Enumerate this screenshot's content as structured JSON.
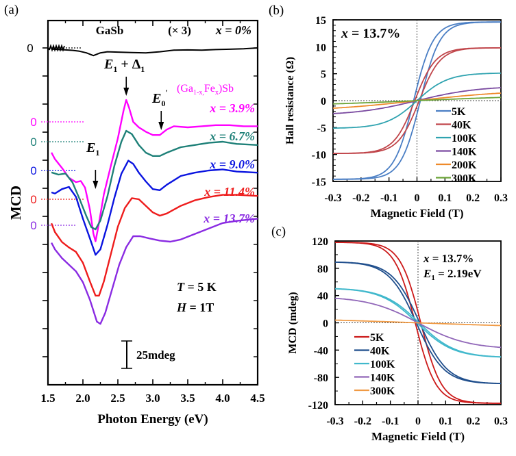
{
  "chart_data": [
    {
      "panel": "(a)",
      "type": "line",
      "xlabel": "Photon Energy (eV)",
      "ylabel": "MCD",
      "xlim": [
        1.5,
        4.5
      ],
      "xticks": [
        "1.5",
        "2.0",
        "2.5",
        "3.0",
        "3.5",
        "4.0",
        "4.5"
      ],
      "scale_bar_label": "25mdeg",
      "scale_bar_mdeg": 25,
      "conditions": [
        "T = 5 K",
        "H = 1T"
      ],
      "material_label": "(Ga1-x,Fex)Sb",
      "gasb_label": "GaSb",
      "gasb_multiplier": "(× 3)",
      "zero_label": "0",
      "annotations": [
        {
          "label": "E1 + Δ1",
          "x": 2.62
        },
        {
          "label": "E0'",
          "x": 3.12
        },
        {
          "label": "E1",
          "x": 2.18
        }
      ],
      "series": [
        {
          "name": "x = 0%",
          "color": "#000000",
          "offset_rank": 0,
          "x": [
            1.55,
            1.65,
            1.75,
            1.85,
            1.95,
            2.05,
            2.15,
            2.25,
            2.35,
            2.5,
            2.7,
            2.9,
            3.1,
            3.3,
            3.5,
            3.7,
            3.9,
            4.1,
            4.3,
            4.5
          ],
          "y": [
            -1,
            -1.5,
            -1.8,
            -2.2,
            -3,
            -4.5,
            -7,
            -4.5,
            -3.5,
            -3.8,
            -4.2,
            -4.5,
            -3.5,
            -2,
            -1.8,
            -2,
            -1.5,
            -1.2,
            -0.8,
            0
          ]
        },
        {
          "name": "x = 3.9%",
          "color": "#ff00ff",
          "offset_rank": 1,
          "x": [
            1.55,
            1.6,
            1.7,
            1.8,
            1.9,
            1.97,
            2.03,
            2.1,
            2.15,
            2.18,
            2.22,
            2.3,
            2.4,
            2.5,
            2.58,
            2.62,
            2.66,
            2.72,
            2.8,
            2.9,
            3.0,
            3.1,
            3.2,
            3.3,
            3.5,
            3.7,
            3.9,
            4.1,
            4.3,
            4.5
          ],
          "y": [
            -28,
            -34,
            -42,
            -51,
            -55,
            -54,
            -60,
            -80,
            -102,
            -109,
            -96,
            -66,
            -40,
            -15,
            10,
            20,
            13,
            0,
            -5,
            -9,
            -12,
            -12,
            -7,
            -4,
            -5,
            -4,
            -3,
            -3,
            -4,
            -4
          ]
        },
        {
          "name": "x = 6.7%",
          "color": "#1e8078",
          "offset_rank": 2,
          "x": [
            1.55,
            1.65,
            1.75,
            1.85,
            1.95,
            2.05,
            2.12,
            2.18,
            2.25,
            2.35,
            2.45,
            2.55,
            2.62,
            2.7,
            2.8,
            2.9,
            3.0,
            3.1,
            3.2,
            3.4,
            3.6,
            3.8,
            4.0,
            4.2,
            4.5
          ],
          "y": [
            -28,
            -30,
            -29,
            -37,
            -52,
            -68,
            -78,
            -80,
            -72,
            -50,
            -22,
            0,
            10,
            7,
            -3,
            -10,
            -13,
            -13,
            -10,
            -5,
            -3,
            -1,
            0,
            -2,
            -3
          ]
        },
        {
          "name": "x = 9.0%",
          "color": "#0a14e0",
          "offset_rank": 3,
          "x": [
            1.55,
            1.6,
            1.7,
            1.8,
            1.9,
            2.0,
            2.1,
            2.18,
            2.25,
            2.35,
            2.45,
            2.55,
            2.65,
            2.72,
            2.8,
            2.9,
            3.0,
            3.1,
            3.2,
            3.4,
            3.6,
            3.8,
            4.0,
            4.2,
            4.5
          ],
          "y": [
            -20,
            -21,
            -17,
            -15,
            -24,
            -44,
            -62,
            -77,
            -72,
            -50,
            -25,
            -3,
            9,
            6,
            -2,
            -10,
            -17,
            -18,
            -13,
            -5,
            -2,
            0,
            1,
            -1,
            -2
          ]
        },
        {
          "name": "x = 11.4%",
          "color": "#ee1c1c",
          "offset_rank": 4,
          "x": [
            1.55,
            1.6,
            1.7,
            1.8,
            1.9,
            2.0,
            2.1,
            2.18,
            2.23,
            2.3,
            2.4,
            2.5,
            2.6,
            2.7,
            2.8,
            2.9,
            3.0,
            3.1,
            3.2,
            3.4,
            3.6,
            3.8,
            4.0,
            4.2,
            4.5
          ],
          "y": [
            -22,
            -30,
            -39,
            -44,
            -48,
            -58,
            -75,
            -88,
            -88,
            -75,
            -50,
            -25,
            -8,
            1,
            0,
            -6,
            -12,
            -15,
            -13,
            -6,
            -1,
            2,
            4,
            4,
            3
          ]
        },
        {
          "name": "x = 13.7%",
          "color": "#8a2be2",
          "offset_rank": 5,
          "x": [
            1.55,
            1.6,
            1.7,
            1.8,
            1.9,
            2.0,
            2.1,
            2.2,
            2.25,
            2.32,
            2.42,
            2.52,
            2.62,
            2.72,
            2.82,
            2.95,
            3.1,
            3.25,
            3.4,
            3.6,
            3.8,
            4.0,
            4.2,
            4.5
          ],
          "y": [
            -16,
            -22,
            -30,
            -36,
            -42,
            -52,
            -68,
            -88,
            -90,
            -80,
            -58,
            -36,
            -20,
            -10,
            -10,
            -12,
            -14,
            -15,
            -13,
            -8,
            -3,
            2,
            4,
            6
          ]
        }
      ]
    },
    {
      "panel": "(b)",
      "type": "line",
      "xlabel": "Magnetic Field (T)",
      "ylabel": "Hall resistance (Ω)",
      "xlim": [
        -0.3,
        0.3
      ],
      "ylim": [
        -15,
        15
      ],
      "xticks": [
        "-0.3",
        "-0.2",
        "-0.1",
        "0",
        "0.1",
        "0.2",
        "0.3"
      ],
      "yticks": [
        "15",
        "10",
        "5",
        "0",
        "-5",
        "-10",
        "-15"
      ],
      "annotation": "x = 13.7%",
      "legend_position": "bottom-right",
      "series": [
        {
          "name": "5K",
          "color": "#4a7ec4",
          "saturation": 14.6,
          "width_T": 0.07,
          "hysteresis_T": 0.012
        },
        {
          "name": "40K",
          "color": "#c0454a",
          "saturation": 9.8,
          "width_T": 0.075,
          "hysteresis_T": 0.008
        },
        {
          "name": "100K",
          "color": "#2fa3b0",
          "saturation": 5.1,
          "width_T": 0.11,
          "hysteresis_T": 0
        },
        {
          "name": "140K",
          "color": "#7a4aa0",
          "saturation": 2.4,
          "width_T": 0.22,
          "hysteresis_T": 0
        },
        {
          "name": "200K",
          "color": "#ee8a2a",
          "saturation": 1.4,
          "width_T": 0.35,
          "hysteresis_T": 0
        },
        {
          "name": "300K",
          "color": "#6aa336",
          "saturation": 0.6,
          "width_T": 0.5,
          "hysteresis_T": 0
        }
      ]
    },
    {
      "panel": "(c)",
      "type": "line",
      "xlabel": "Magnetic Field (T)",
      "ylabel": "MCD (mdeg)",
      "xlim": [
        -0.3,
        0.3
      ],
      "ylim": [
        -120,
        120
      ],
      "xticks": [
        "-0.3",
        "-0.2",
        "-0.1",
        "0",
        "0.1",
        "0.2",
        "0.3"
      ],
      "yticks": [
        "120",
        "80",
        "40",
        "0",
        "-40",
        "-80",
        "-120"
      ],
      "annotations": [
        "x = 13.7%",
        "E1 = 2.19eV"
      ],
      "legend_position": "bottom-left",
      "series": [
        {
          "name": "5K",
          "color": "#cc1a1a",
          "saturation": -118,
          "width_T": 0.075,
          "hysteresis_T": 0.01
        },
        {
          "name": "40K",
          "color": "#1f4e8c",
          "saturation": -89,
          "width_T": 0.1,
          "hysteresis_T": 0.006
        },
        {
          "name": "100K",
          "color": "#40b8cc",
          "saturation": -50,
          "width_T": 0.13,
          "hysteresis_T": 0.004
        },
        {
          "name": "140K",
          "color": "#9066b8",
          "saturation": -36,
          "width_T": 0.18,
          "hysteresis_T": 0
        },
        {
          "name": "300K",
          "color": "#f09a44",
          "saturation": -4,
          "width_T": 0.6,
          "hysteresis_T": 0
        }
      ]
    }
  ]
}
